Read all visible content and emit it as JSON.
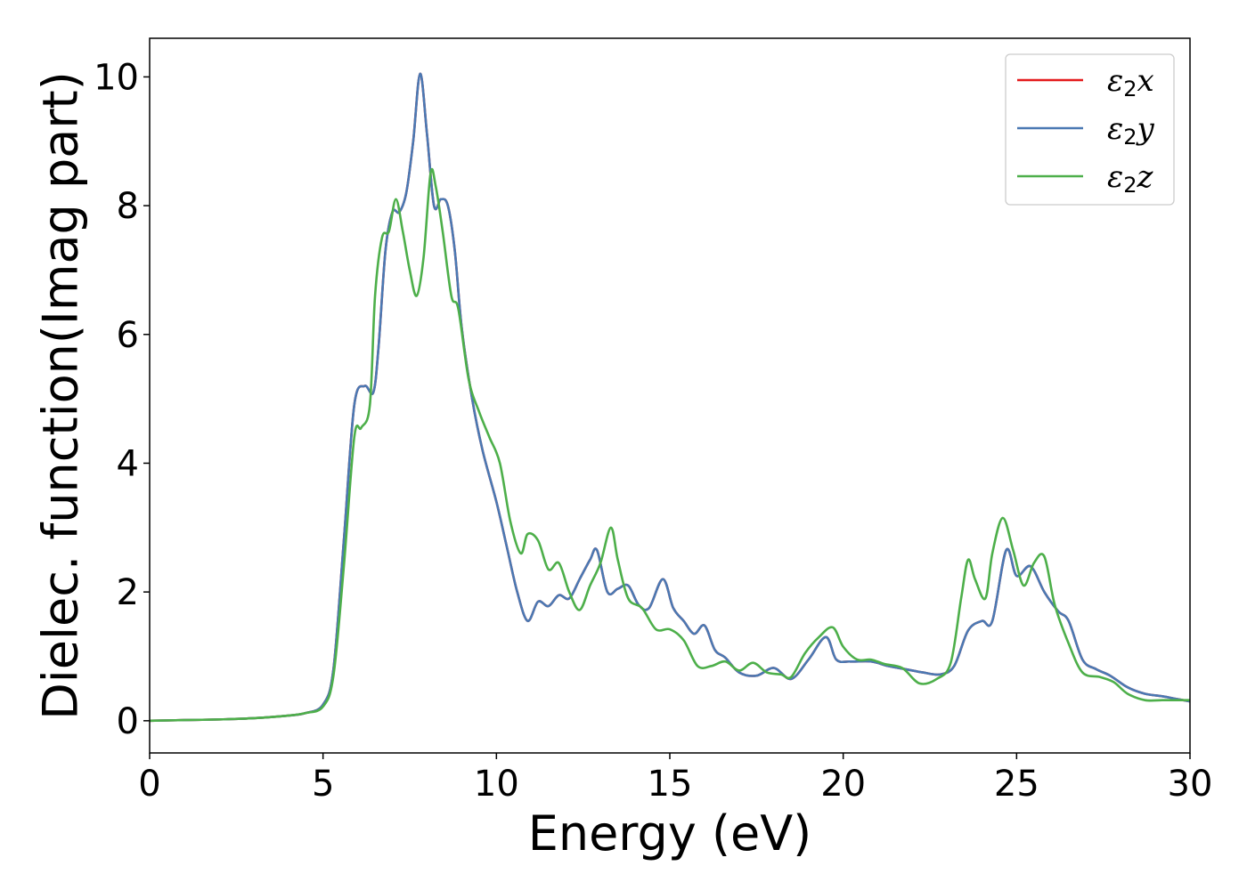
{
  "chart_data": {
    "type": "line",
    "title": "",
    "xlabel": "Energy (eV)",
    "ylabel": "Dielec. function(Imag part)",
    "xlim": [
      0,
      30
    ],
    "ylim": [
      -0.5,
      10.6
    ],
    "xticks": [
      0,
      5,
      10,
      15,
      20,
      25,
      30
    ],
    "yticks": [
      0,
      2,
      4,
      6,
      8,
      10
    ],
    "grid": false,
    "legend_position": "top-right",
    "series": [
      {
        "name": "ε2x",
        "legend": {
          "base": "ε",
          "sub": "2",
          "suffix": "x"
        },
        "color": "#e41a1c",
        "x": [
          0,
          1,
          2,
          3,
          4,
          4.5,
          5,
          5.3,
          5.6,
          5.9,
          6.2,
          6.45,
          6.6,
          6.8,
          7.0,
          7.2,
          7.4,
          7.6,
          7.8,
          8.0,
          8.2,
          8.4,
          8.6,
          8.8,
          9.0,
          9.3,
          9.6,
          10.0,
          10.3,
          10.6,
          10.9,
          11.2,
          11.5,
          11.8,
          12.1,
          12.4,
          12.7,
          12.9,
          13.2,
          13.5,
          13.8,
          14.1,
          14.4,
          14.8,
          15.1,
          15.4,
          15.7,
          16.0,
          16.3,
          16.6,
          17.0,
          17.5,
          18.0,
          18.5,
          19.0,
          19.5,
          19.8,
          20.2,
          20.8,
          21.3,
          21.8,
          22.3,
          22.8,
          23.2,
          23.6,
          24.0,
          24.3,
          24.7,
          25.0,
          25.4,
          25.8,
          26.2,
          26.5,
          26.9,
          27.3,
          27.7,
          28.2,
          28.7,
          29.2,
          29.6,
          30.0
        ],
        "y": [
          0.0,
          0.01,
          0.02,
          0.04,
          0.08,
          0.12,
          0.25,
          0.8,
          2.8,
          4.9,
          5.2,
          5.1,
          5.8,
          7.3,
          7.9,
          7.9,
          8.2,
          9.0,
          10.05,
          9.1,
          8.0,
          8.1,
          8.0,
          7.3,
          6.1,
          5.0,
          4.2,
          3.4,
          2.7,
          2.0,
          1.55,
          1.85,
          1.78,
          1.95,
          1.9,
          2.2,
          2.5,
          2.65,
          2.0,
          2.05,
          2.1,
          1.8,
          1.75,
          2.2,
          1.75,
          1.55,
          1.35,
          1.48,
          1.1,
          0.98,
          0.75,
          0.7,
          0.82,
          0.65,
          0.95,
          1.3,
          0.95,
          0.92,
          0.92,
          0.85,
          0.8,
          0.75,
          0.72,
          0.85,
          1.4,
          1.55,
          1.55,
          2.65,
          2.25,
          2.4,
          2.0,
          1.7,
          1.55,
          0.95,
          0.8,
          0.7,
          0.52,
          0.42,
          0.38,
          0.34,
          0.3
        ]
      },
      {
        "name": "ε2y",
        "legend": {
          "base": "ε",
          "sub": "2",
          "suffix": "y"
        },
        "color": "#4a79b3",
        "x": [
          0,
          1,
          2,
          3,
          4,
          4.5,
          5,
          5.3,
          5.6,
          5.9,
          6.2,
          6.45,
          6.6,
          6.8,
          7.0,
          7.2,
          7.4,
          7.6,
          7.8,
          8.0,
          8.2,
          8.4,
          8.6,
          8.8,
          9.0,
          9.3,
          9.6,
          10.0,
          10.3,
          10.6,
          10.9,
          11.2,
          11.5,
          11.8,
          12.1,
          12.4,
          12.7,
          12.9,
          13.2,
          13.5,
          13.8,
          14.1,
          14.4,
          14.8,
          15.1,
          15.4,
          15.7,
          16.0,
          16.3,
          16.6,
          17.0,
          17.5,
          18.0,
          18.5,
          19.0,
          19.5,
          19.8,
          20.2,
          20.8,
          21.3,
          21.8,
          22.3,
          22.8,
          23.2,
          23.6,
          24.0,
          24.3,
          24.7,
          25.0,
          25.4,
          25.8,
          26.2,
          26.5,
          26.9,
          27.3,
          27.7,
          28.2,
          28.7,
          29.2,
          29.6,
          30.0
        ],
        "y": [
          0.0,
          0.01,
          0.02,
          0.04,
          0.08,
          0.12,
          0.25,
          0.8,
          2.8,
          4.9,
          5.2,
          5.1,
          5.8,
          7.3,
          7.9,
          7.9,
          8.2,
          9.0,
          10.05,
          9.1,
          8.0,
          8.1,
          8.0,
          7.3,
          6.1,
          5.0,
          4.2,
          3.4,
          2.7,
          2.0,
          1.55,
          1.85,
          1.78,
          1.95,
          1.9,
          2.2,
          2.5,
          2.65,
          2.0,
          2.05,
          2.1,
          1.8,
          1.75,
          2.2,
          1.75,
          1.55,
          1.35,
          1.48,
          1.1,
          0.98,
          0.75,
          0.7,
          0.82,
          0.65,
          0.95,
          1.3,
          0.95,
          0.92,
          0.92,
          0.85,
          0.8,
          0.75,
          0.72,
          0.85,
          1.4,
          1.55,
          1.55,
          2.65,
          2.25,
          2.4,
          2.0,
          1.7,
          1.55,
          0.95,
          0.8,
          0.7,
          0.52,
          0.42,
          0.38,
          0.34,
          0.3
        ]
      },
      {
        "name": "ε2z",
        "legend": {
          "base": "ε",
          "sub": "2",
          "suffix": "z"
        },
        "color": "#4daf4a",
        "x": [
          0,
          1,
          2,
          3,
          4,
          4.5,
          5,
          5.3,
          5.6,
          5.9,
          6.1,
          6.35,
          6.5,
          6.7,
          6.9,
          7.1,
          7.3,
          7.5,
          7.7,
          7.9,
          8.1,
          8.25,
          8.45,
          8.7,
          8.9,
          9.2,
          9.5,
          9.8,
          10.1,
          10.4,
          10.7,
          10.9,
          11.2,
          11.5,
          11.8,
          12.1,
          12.4,
          12.7,
          13.0,
          13.3,
          13.5,
          13.8,
          14.2,
          14.6,
          15.0,
          15.4,
          15.8,
          16.2,
          16.6,
          17.0,
          17.4,
          17.8,
          18.2,
          18.5,
          18.9,
          19.3,
          19.7,
          20.0,
          20.4,
          20.8,
          21.2,
          21.7,
          22.2,
          22.7,
          23.1,
          23.4,
          23.6,
          23.8,
          24.1,
          24.3,
          24.6,
          24.9,
          25.2,
          25.5,
          25.8,
          26.1,
          26.5,
          26.9,
          27.4,
          27.8,
          28.2,
          28.7,
          29.2,
          29.6,
          30.0
        ],
        "y": [
          0.0,
          0.01,
          0.02,
          0.04,
          0.08,
          0.12,
          0.22,
          0.7,
          2.4,
          4.4,
          4.55,
          4.9,
          6.6,
          7.5,
          7.6,
          8.1,
          7.6,
          7.0,
          6.6,
          7.2,
          8.5,
          8.3,
          7.6,
          6.6,
          6.4,
          5.3,
          4.8,
          4.4,
          4.0,
          3.1,
          2.6,
          2.9,
          2.8,
          2.35,
          2.45,
          2.0,
          1.72,
          2.1,
          2.45,
          3.0,
          2.5,
          1.9,
          1.75,
          1.42,
          1.42,
          1.25,
          0.85,
          0.85,
          0.92,
          0.78,
          0.9,
          0.75,
          0.72,
          0.68,
          1.05,
          1.3,
          1.45,
          1.15,
          0.95,
          0.95,
          0.88,
          0.82,
          0.58,
          0.65,
          0.9,
          1.9,
          2.5,
          2.2,
          1.9,
          2.6,
          3.15,
          2.65,
          2.1,
          2.45,
          2.55,
          1.8,
          1.2,
          0.75,
          0.68,
          0.6,
          0.42,
          0.32,
          0.32,
          0.32,
          0.32
        ]
      }
    ]
  }
}
